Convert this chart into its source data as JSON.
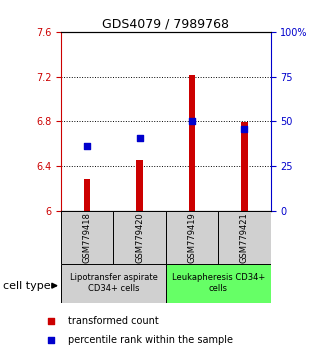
{
  "title": "GDS4079 / 7989768",
  "samples": [
    "GSM779418",
    "GSM779420",
    "GSM779419",
    "GSM779421"
  ],
  "red_values": [
    6.28,
    6.45,
    7.21,
    6.79
  ],
  "blue_values": [
    6.58,
    6.65,
    6.8,
    6.73
  ],
  "ylim_left": [
    6.0,
    7.6
  ],
  "ylim_right": [
    0,
    100
  ],
  "yticks_left": [
    6.0,
    6.4,
    6.8,
    7.2,
    7.6
  ],
  "yticks_right": [
    0,
    25,
    50,
    75,
    100
  ],
  "ytick_labels_left": [
    "6",
    "6.4",
    "6.8",
    "7.2",
    "7.6"
  ],
  "ytick_labels_right": [
    "0",
    "25",
    "50",
    "75",
    "100%"
  ],
  "grid_lines": [
    6.4,
    6.8,
    7.2
  ],
  "bar_color": "#cc0000",
  "dot_color": "#0000cc",
  "bar_width": 0.12,
  "dot_size": 18,
  "group1_label": "Lipotransfer aspirate\nCD34+ cells",
  "group2_label": "Leukapheresis CD34+\ncells",
  "group1_color": "#d0d0d0",
  "group2_color": "#66ff66",
  "cell_type_label": "cell type",
  "legend_red": "transformed count",
  "legend_blue": "percentile rank within the sample",
  "left_color": "#cc0000",
  "right_color": "#0000cc",
  "title_fontsize": 9,
  "tick_fontsize": 7,
  "sample_fontsize": 6,
  "group_fontsize": 6,
  "legend_fontsize": 7,
  "cell_type_fontsize": 8
}
